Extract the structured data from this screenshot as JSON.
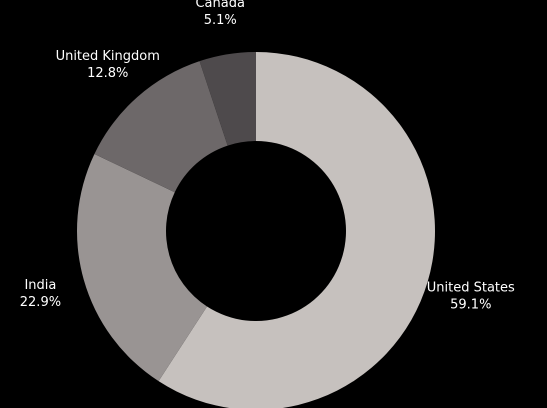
{
  "chart_data": {
    "type": "pie",
    "variant": "donut",
    "title": "",
    "slices": [
      {
        "label": "United States",
        "value": 59.1,
        "value_label": "59.1%",
        "color": "#c6c1be"
      },
      {
        "label": "India",
        "value": 22.9,
        "value_label": "22.9%",
        "color": "#999493"
      },
      {
        "label": "United Kingdom",
        "value": 12.8,
        "value_label": "12.8%",
        "color": "#6d6869"
      },
      {
        "label": "Canada",
        "value": 5.1,
        "value_label": "5.1%",
        "color": "#4e4a4c"
      }
    ],
    "start_angle": "12 o'clock",
    "direction": "clockwise",
    "legend": "none",
    "background": "#000000",
    "label_color": "#ffffff"
  }
}
